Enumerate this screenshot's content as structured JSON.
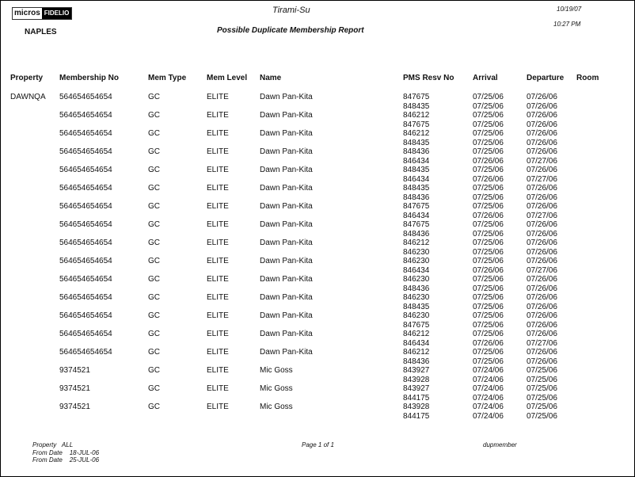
{
  "header": {
    "logo_left": "micros",
    "logo_right": "FIDELIO",
    "app_title": "Tirami-Su",
    "report_title": "Possible Duplicate Membership Report",
    "property_name": "NAPLES",
    "date": "10/19/07",
    "time": "10:27 PM"
  },
  "columns": [
    "Property",
    "Membership No",
    "Mem Type",
    "Mem Level",
    "Name",
    "PMS Resv No",
    "Arrival",
    "Departure",
    "Room"
  ],
  "groups": [
    {
      "property": "DAWNQA",
      "membership": "564654654654",
      "type": "GC",
      "level": "ELITE",
      "name": "Dawn Pan-Kita",
      "resv": [
        [
          "847675",
          "07/25/06",
          "07/26/06"
        ],
        [
          "848435",
          "07/25/06",
          "07/26/06"
        ]
      ]
    },
    {
      "property": "",
      "membership": "564654654654",
      "type": "GC",
      "level": "ELITE",
      "name": "Dawn Pan-Kita",
      "resv": [
        [
          "846212",
          "07/25/06",
          "07/26/06"
        ],
        [
          "847675",
          "07/25/06",
          "07/26/06"
        ]
      ]
    },
    {
      "property": "",
      "membership": "564654654654",
      "type": "GC",
      "level": "ELITE",
      "name": "Dawn Pan-Kita",
      "resv": [
        [
          "846212",
          "07/25/06",
          "07/26/06"
        ],
        [
          "848435",
          "07/25/06",
          "07/26/06"
        ]
      ]
    },
    {
      "property": "",
      "membership": "564654654654",
      "type": "GC",
      "level": "ELITE",
      "name": "Dawn Pan-Kita",
      "resv": [
        [
          "848436",
          "07/25/06",
          "07/26/06"
        ],
        [
          "846434",
          "07/26/06",
          "07/27/06"
        ]
      ]
    },
    {
      "property": "",
      "membership": "564654654654",
      "type": "GC",
      "level": "ELITE",
      "name": "Dawn Pan-Kita",
      "resv": [
        [
          "848435",
          "07/25/06",
          "07/26/06"
        ],
        [
          "846434",
          "07/26/06",
          "07/27/06"
        ]
      ]
    },
    {
      "property": "",
      "membership": "564654654654",
      "type": "GC",
      "level": "ELITE",
      "name": "Dawn Pan-Kita",
      "resv": [
        [
          "848435",
          "07/25/06",
          "07/26/06"
        ],
        [
          "848436",
          "07/25/06",
          "07/26/06"
        ]
      ]
    },
    {
      "property": "",
      "membership": "564654654654",
      "type": "GC",
      "level": "ELITE",
      "name": "Dawn Pan-Kita",
      "resv": [
        [
          "847675",
          "07/25/06",
          "07/26/06"
        ],
        [
          "846434",
          "07/26/06",
          "07/27/06"
        ]
      ]
    },
    {
      "property": "",
      "membership": "564654654654",
      "type": "GC",
      "level": "ELITE",
      "name": "Dawn Pan-Kita",
      "resv": [
        [
          "847675",
          "07/25/06",
          "07/26/06"
        ],
        [
          "848436",
          "07/25/06",
          "07/26/06"
        ]
      ]
    },
    {
      "property": "",
      "membership": "564654654654",
      "type": "GC",
      "level": "ELITE",
      "name": "Dawn Pan-Kita",
      "resv": [
        [
          "846212",
          "07/25/06",
          "07/26/06"
        ],
        [
          "846230",
          "07/25/06",
          "07/26/06"
        ]
      ]
    },
    {
      "property": "",
      "membership": "564654654654",
      "type": "GC",
      "level": "ELITE",
      "name": "Dawn Pan-Kita",
      "resv": [
        [
          "846230",
          "07/25/06",
          "07/26/06"
        ],
        [
          "846434",
          "07/26/06",
          "07/27/06"
        ]
      ]
    },
    {
      "property": "",
      "membership": "564654654654",
      "type": "GC",
      "level": "ELITE",
      "name": "Dawn Pan-Kita",
      "resv": [
        [
          "846230",
          "07/25/06",
          "07/26/06"
        ],
        [
          "848436",
          "07/25/06",
          "07/26/06"
        ]
      ]
    },
    {
      "property": "",
      "membership": "564654654654",
      "type": "GC",
      "level": "ELITE",
      "name": "Dawn Pan-Kita",
      "resv": [
        [
          "846230",
          "07/25/06",
          "07/26/06"
        ],
        [
          "848435",
          "07/25/06",
          "07/26/06"
        ]
      ]
    },
    {
      "property": "",
      "membership": "564654654654",
      "type": "GC",
      "level": "ELITE",
      "name": "Dawn Pan-Kita",
      "resv": [
        [
          "846230",
          "07/25/06",
          "07/26/06"
        ],
        [
          "847675",
          "07/25/06",
          "07/26/06"
        ]
      ]
    },
    {
      "property": "",
      "membership": "564654654654",
      "type": "GC",
      "level": "ELITE",
      "name": "Dawn Pan-Kita",
      "resv": [
        [
          "846212",
          "07/25/06",
          "07/26/06"
        ],
        [
          "846434",
          "07/26/06",
          "07/27/06"
        ]
      ]
    },
    {
      "property": "",
      "membership": "564654654654",
      "type": "GC",
      "level": "ELITE",
      "name": "Dawn Pan-Kita",
      "resv": [
        [
          "846212",
          "07/25/06",
          "07/26/06"
        ],
        [
          "848436",
          "07/25/06",
          "07/26/06"
        ]
      ]
    },
    {
      "property": "",
      "membership": "9374521",
      "type": "GC",
      "level": "ELITE",
      "name": "Mic Goss",
      "resv": [
        [
          "843927",
          "07/24/06",
          "07/25/06"
        ],
        [
          "843928",
          "07/24/06",
          "07/25/06"
        ]
      ]
    },
    {
      "property": "",
      "membership": "9374521",
      "type": "GC",
      "level": "ELITE",
      "name": "Mic Goss",
      "resv": [
        [
          "843927",
          "07/24/06",
          "07/25/06"
        ],
        [
          "844175",
          "07/24/06",
          "07/25/06"
        ]
      ]
    },
    {
      "property": "",
      "membership": "9374521",
      "type": "GC",
      "level": "ELITE",
      "name": "Mic Goss",
      "resv": [
        [
          "843928",
          "07/24/06",
          "07/25/06"
        ],
        [
          "844175",
          "07/24/06",
          "07/25/06"
        ]
      ]
    }
  ],
  "footer": {
    "property_label": "Property",
    "property_value": "ALL",
    "from_label": "From Date",
    "from_value": "18-JUL-06",
    "to_label": "From Date",
    "to_value": "25-JUL-06",
    "page": "Page 1 of 1",
    "report_code": "dupmember"
  }
}
